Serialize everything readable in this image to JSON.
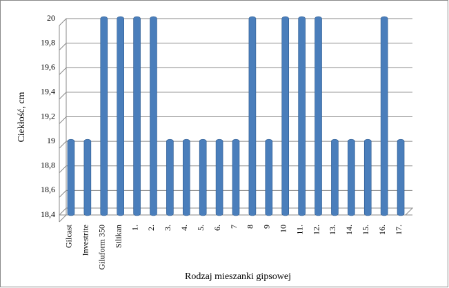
{
  "chart_data": {
    "type": "bar",
    "categories": [
      "Gilcast",
      "Investrite",
      "Giluform 350",
      "Silikan",
      "1.",
      "2.",
      "3.",
      "4.",
      "5.",
      "6.",
      "7",
      "8",
      "9",
      "10",
      "11.",
      "12.",
      "13.",
      "14.",
      "15.",
      "16.",
      "17."
    ],
    "values": [
      19,
      19,
      20,
      20,
      20,
      20,
      19,
      19,
      19,
      19,
      19,
      20,
      19,
      20,
      20,
      20,
      19,
      19,
      19,
      20,
      19
    ],
    "color": "#4a7ebb",
    "ylim": [
      18.4,
      20
    ],
    "yticks": [
      {
        "value": 18.4,
        "label": "18,4"
      },
      {
        "value": 18.6,
        "label": "18,6"
      },
      {
        "value": 18.8,
        "label": "18,8"
      },
      {
        "value": 19,
        "label": "19"
      },
      {
        "value": 19.2,
        "label": "19,2"
      },
      {
        "value": 19.4,
        "label": "19,4"
      },
      {
        "value": 19.6,
        "label": "19,6"
      },
      {
        "value": 19.8,
        "label": "19,8"
      },
      {
        "value": 20,
        "label": "20"
      }
    ],
    "y_label": "Ciekłość, cm",
    "x_label": "Rodzaj mieszanki gipsowej",
    "grid": true
  }
}
